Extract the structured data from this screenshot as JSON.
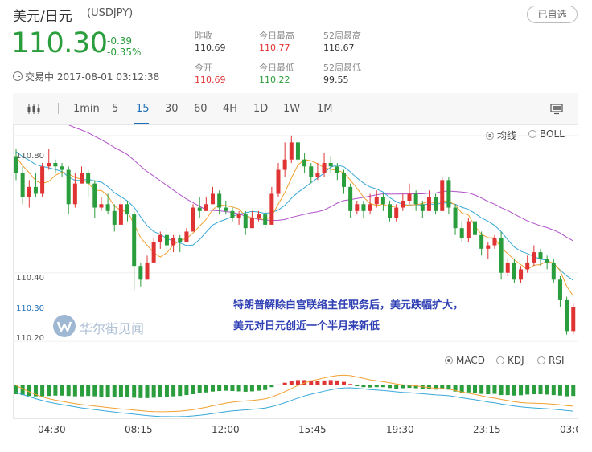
{
  "header": {
    "title": "美元/日元",
    "symbol": "(USDJPY)",
    "watch_button": "已自选",
    "price": "110.30",
    "change_abs": "-0.39",
    "change_pct": "-0.35%",
    "status": "交易中 2017-08-01 03:12:38"
  },
  "stats": [
    {
      "label": "昨收",
      "value": "110.69",
      "color": "#333333"
    },
    {
      "label": "今日最高",
      "value": "110.77",
      "color": "#e03333"
    },
    {
      "label": "52周最高",
      "value": "118.67",
      "color": "#333333"
    },
    {
      "label": "今开",
      "value": "110.69",
      "color": "#e03333"
    },
    {
      "label": "今日最低",
      "value": "110.22",
      "color": "#2a9d3c"
    },
    {
      "label": "52周最低",
      "value": "99.55",
      "color": "#333333"
    }
  ],
  "toolbar": {
    "tabs": [
      "1min",
      "5",
      "15",
      "30",
      "60",
      "4H",
      "1D",
      "1W",
      "1M"
    ],
    "active_tab": "15"
  },
  "overlay_options": {
    "ma_label": "均线",
    "boll_label": "BOLL",
    "selected": "均线"
  },
  "indicator_options": {
    "macd_label": "MACD",
    "kdj_label": "KDJ",
    "rsi_label": "RSI",
    "selected": "MACD"
  },
  "annotation": {
    "line1": "特朗普解除白宫联络主任职务后，美元跌幅扩大，",
    "line2": "美元对日元创近一个半月来新低"
  },
  "watermark": "华尔街见闻",
  "colors": {
    "up": "#e03333",
    "down": "#2a9d3c",
    "active": "#1f6fb8",
    "ma_short": "#f0a030",
    "ma_mid": "#38a8d8",
    "ma_long": "#b050c8"
  },
  "chart_data": {
    "type": "candlestick",
    "x_ticks": [
      "04:30",
      "08:15",
      "12:00",
      "15:45",
      "19:30",
      "23:15",
      "03:00"
    ],
    "y_ticks": [
      110.8,
      110.4,
      110.3,
      110.2
    ],
    "y_tick_labels": [
      "110.80",
      "110.40",
      "110.30",
      "110.20"
    ],
    "current_price": 110.3,
    "ylim": [
      110.17,
      110.83
    ],
    "candles": [
      [
        110.74,
        110.69,
        110.76,
        110.67
      ],
      [
        110.69,
        110.62,
        110.71,
        110.6
      ],
      [
        110.62,
        110.65,
        110.67,
        110.59
      ],
      [
        110.65,
        110.63,
        110.69,
        110.62
      ],
      [
        110.63,
        110.71,
        110.72,
        110.62
      ],
      [
        110.71,
        110.72,
        110.76,
        110.7
      ],
      [
        110.72,
        110.71,
        110.73,
        110.69
      ],
      [
        110.71,
        110.7,
        110.72,
        110.68
      ],
      [
        110.7,
        110.6,
        110.71,
        110.57
      ],
      [
        110.6,
        110.66,
        110.69,
        110.59
      ],
      [
        110.66,
        110.69,
        110.71,
        110.66
      ],
      [
        110.69,
        110.66,
        110.7,
        110.62
      ],
      [
        110.66,
        110.59,
        110.67,
        110.56
      ],
      [
        110.59,
        110.6,
        110.62,
        110.58
      ],
      [
        110.6,
        110.58,
        110.63,
        110.57
      ],
      [
        110.58,
        110.54,
        110.6,
        110.52
      ],
      [
        110.54,
        110.6,
        110.62,
        110.54
      ],
      [
        110.6,
        110.57,
        110.61,
        110.55
      ],
      [
        110.57,
        110.42,
        110.58,
        110.35
      ],
      [
        110.42,
        110.38,
        110.43,
        110.36
      ],
      [
        110.38,
        110.43,
        110.45,
        110.38
      ],
      [
        110.43,
        110.49,
        110.5,
        110.43
      ],
      [
        110.49,
        110.51,
        110.52,
        110.47
      ],
      [
        110.51,
        110.48,
        110.53,
        110.47
      ],
      [
        110.48,
        110.5,
        110.51,
        110.46
      ],
      [
        110.5,
        110.49,
        110.51,
        110.46
      ],
      [
        110.49,
        110.52,
        110.53,
        110.49
      ],
      [
        110.52,
        110.59,
        110.6,
        110.52
      ],
      [
        110.59,
        110.58,
        110.62,
        110.56
      ],
      [
        110.58,
        110.6,
        110.62,
        110.58
      ],
      [
        110.6,
        110.63,
        110.65,
        110.6
      ],
      [
        110.63,
        110.59,
        110.64,
        110.57
      ],
      [
        110.59,
        110.58,
        110.61,
        110.57
      ],
      [
        110.58,
        110.56,
        110.59,
        110.55
      ],
      [
        110.56,
        110.57,
        110.58,
        110.54
      ],
      [
        110.57,
        110.53,
        110.58,
        110.51
      ],
      [
        110.53,
        110.56,
        110.58,
        110.53
      ],
      [
        110.56,
        110.57,
        110.58,
        110.55
      ],
      [
        110.57,
        110.54,
        110.58,
        110.53
      ],
      [
        110.54,
        110.63,
        110.65,
        110.54
      ],
      [
        110.63,
        110.7,
        110.72,
        110.62
      ],
      [
        110.7,
        110.73,
        110.78,
        110.68
      ],
      [
        110.73,
        110.78,
        110.8,
        110.72
      ],
      [
        110.78,
        110.73,
        110.79,
        110.71
      ],
      [
        110.73,
        110.71,
        110.75,
        110.69
      ],
      [
        110.71,
        110.68,
        110.72,
        110.66
      ],
      [
        110.68,
        110.69,
        110.72,
        110.67
      ],
      [
        110.69,
        110.72,
        110.75,
        110.68
      ],
      [
        110.72,
        110.71,
        110.74,
        110.69
      ],
      [
        110.71,
        110.69,
        110.72,
        110.67
      ],
      [
        110.69,
        110.65,
        110.7,
        110.63
      ],
      [
        110.65,
        110.58,
        110.66,
        110.56
      ],
      [
        110.58,
        110.6,
        110.61,
        110.57
      ],
      [
        110.6,
        110.58,
        110.61,
        110.56
      ],
      [
        110.58,
        110.6,
        110.63,
        110.57
      ],
      [
        110.6,
        110.62,
        110.64,
        110.59
      ],
      [
        110.62,
        110.6,
        110.63,
        110.58
      ],
      [
        110.6,
        110.56,
        110.61,
        110.55
      ],
      [
        110.56,
        110.59,
        110.6,
        110.55
      ],
      [
        110.59,
        110.61,
        110.63,
        110.58
      ],
      [
        110.61,
        110.63,
        110.66,
        110.6
      ],
      [
        110.63,
        110.6,
        110.64,
        110.58
      ],
      [
        110.6,
        110.58,
        110.61,
        110.56
      ],
      [
        110.58,
        110.62,
        110.64,
        110.58
      ],
      [
        110.62,
        110.58,
        110.63,
        110.57
      ],
      [
        110.58,
        110.67,
        110.68,
        110.58
      ],
      [
        110.67,
        110.59,
        110.68,
        110.57
      ],
      [
        110.59,
        110.53,
        110.6,
        110.51
      ],
      [
        110.53,
        110.5,
        110.55,
        110.49
      ],
      [
        110.5,
        110.55,
        110.56,
        110.49
      ],
      [
        110.55,
        110.51,
        110.56,
        110.48
      ],
      [
        110.51,
        110.47,
        110.52,
        110.45
      ],
      [
        110.47,
        110.48,
        110.49,
        110.44
      ],
      [
        110.48,
        110.5,
        110.51,
        110.47
      ],
      [
        110.5,
        110.4,
        110.52,
        110.38
      ],
      [
        110.4,
        110.43,
        110.44,
        110.39
      ],
      [
        110.43,
        110.38,
        110.44,
        110.37
      ],
      [
        110.38,
        110.41,
        110.42,
        110.37
      ],
      [
        110.41,
        110.43,
        110.45,
        110.4
      ],
      [
        110.43,
        110.46,
        110.48,
        110.42
      ],
      [
        110.46,
        110.44,
        110.47,
        110.42
      ],
      [
        110.44,
        110.43,
        110.45,
        110.41
      ],
      [
        110.43,
        110.38,
        110.44,
        110.37
      ],
      [
        110.38,
        110.32,
        110.39,
        110.3
      ],
      [
        110.32,
        110.23,
        110.33,
        110.22
      ],
      [
        110.23,
        110.3,
        110.31,
        110.22
      ]
    ],
    "macd_hist": [
      -0.5,
      -0.55,
      -0.6,
      -0.62,
      -0.62,
      -0.6,
      -0.58,
      -0.58,
      -0.6,
      -0.62,
      -0.62,
      -0.6,
      -0.62,
      -0.64,
      -0.66,
      -0.68,
      -0.68,
      -0.66,
      -0.7,
      -0.72,
      -0.72,
      -0.7,
      -0.68,
      -0.65,
      -0.62,
      -0.6,
      -0.55,
      -0.5,
      -0.45,
      -0.4,
      -0.35,
      -0.32,
      -0.3,
      -0.32,
      -0.34,
      -0.36,
      -0.34,
      -0.3,
      -0.26,
      -0.1,
      0.05,
      0.15,
      0.25,
      0.3,
      0.3,
      0.28,
      0.26,
      0.28,
      0.3,
      0.28,
      0.2,
      0.08,
      -0.05,
      -0.1,
      -0.12,
      -0.1,
      -0.1,
      -0.15,
      -0.18,
      -0.16,
      -0.14,
      -0.16,
      -0.22,
      -0.2,
      -0.24,
      -0.16,
      -0.24,
      -0.35,
      -0.42,
      -0.4,
      -0.42,
      -0.48,
      -0.5,
      -0.48,
      -0.55,
      -0.55,
      -0.58,
      -0.56,
      -0.52,
      -0.5,
      -0.5,
      -0.52,
      -0.55,
      -0.58,
      -0.62,
      -0.6
    ]
  }
}
